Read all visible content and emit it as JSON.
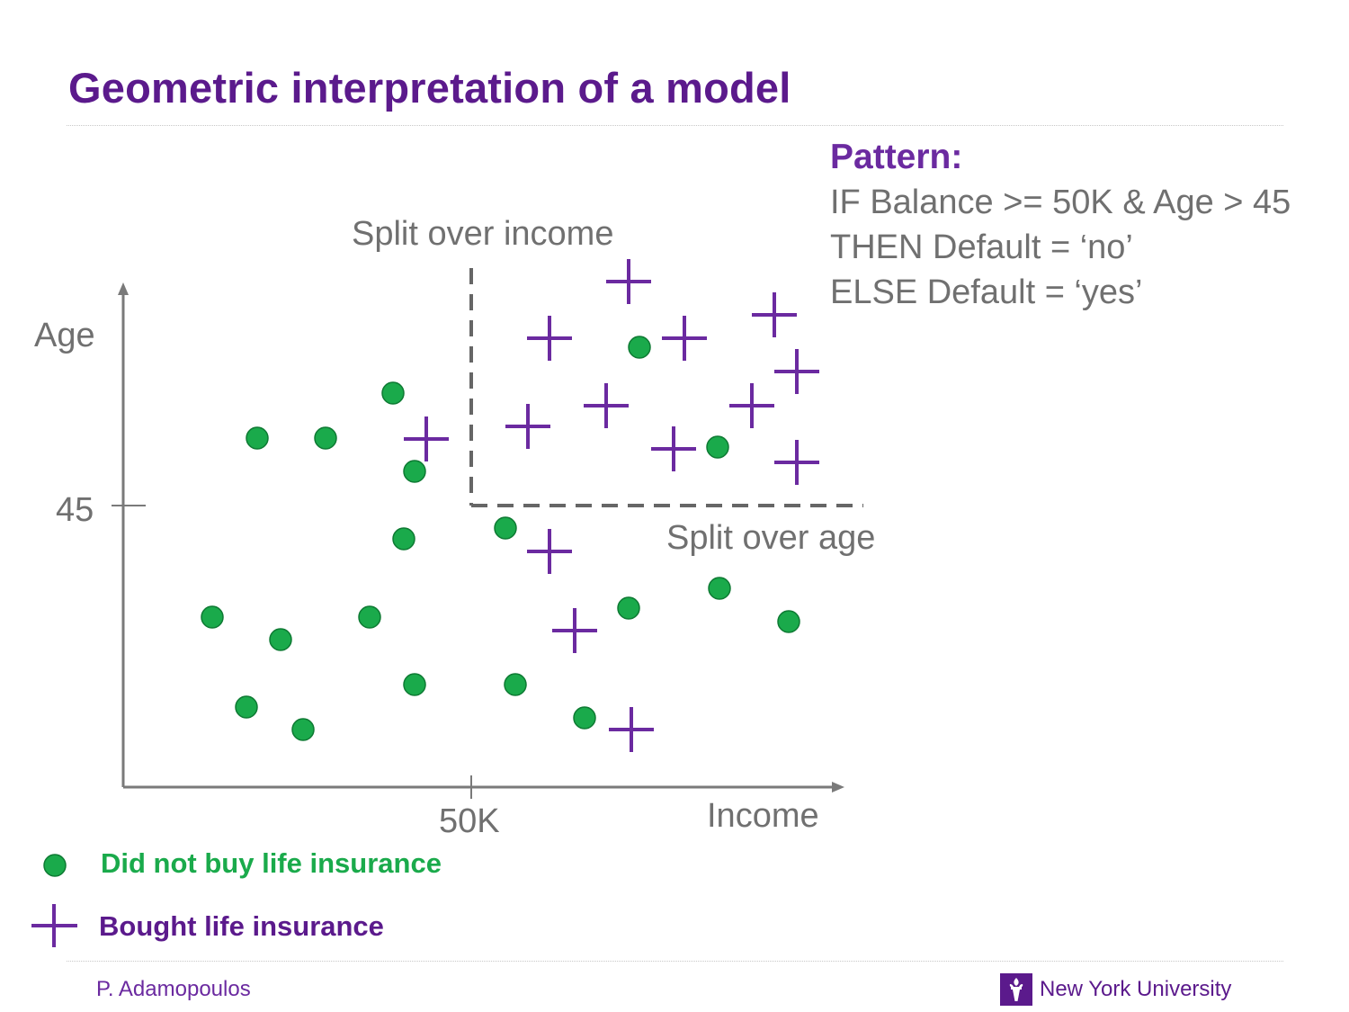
{
  "title": "Geometric interpretation of a model",
  "pattern": {
    "heading": "Pattern:",
    "lines": [
      "IF Balance >= 50K & Age > 45",
      "THEN Default = ‘no’",
      "ELSE Default = ‘yes’"
    ]
  },
  "chart_data": {
    "type": "scatter",
    "xlabel": "Income",
    "ylabel": "Age",
    "x_ticks": [
      "50K"
    ],
    "y_ticks": [
      "45"
    ],
    "grid": false,
    "annotations": {
      "split_income": "Split over income",
      "split_age": "Split over age"
    },
    "series": [
      {
        "name": "Did not buy life insurance",
        "marker": "circle",
        "color": "#1aaa4b",
        "points": [
          [
            286,
            487
          ],
          [
            362,
            487
          ],
          [
            437,
            437
          ],
          [
            461,
            524
          ],
          [
            449,
            599
          ],
          [
            562,
            587
          ],
          [
            711,
            386
          ],
          [
            798,
            497
          ],
          [
            236,
            686
          ],
          [
            312,
            711
          ],
          [
            411,
            686
          ],
          [
            274,
            786
          ],
          [
            337,
            811
          ],
          [
            461,
            761
          ],
          [
            573,
            761
          ],
          [
            650,
            798
          ],
          [
            699,
            676
          ],
          [
            800,
            654
          ],
          [
            877,
            691
          ]
        ]
      },
      {
        "name": "Bought life insurance",
        "marker": "plus",
        "color": "#6b2aa0",
        "points": [
          [
            699,
            313
          ],
          [
            611,
            376
          ],
          [
            761,
            376
          ],
          [
            861,
            350
          ],
          [
            886,
            413
          ],
          [
            674,
            451
          ],
          [
            587,
            474
          ],
          [
            836,
            451
          ],
          [
            749,
            499
          ],
          [
            886,
            514
          ],
          [
            474,
            488
          ],
          [
            611,
            613
          ],
          [
            639,
            701
          ],
          [
            702,
            811
          ]
        ]
      }
    ]
  },
  "legend": {
    "not_bought": "Did not buy life insurance",
    "bought": "Bought life insurance",
    "not_bought_color": "#1aaa4b",
    "bought_color": "#6b2aa0"
  },
  "footer": {
    "author": "P. Adamopoulos",
    "university": "New York University"
  }
}
